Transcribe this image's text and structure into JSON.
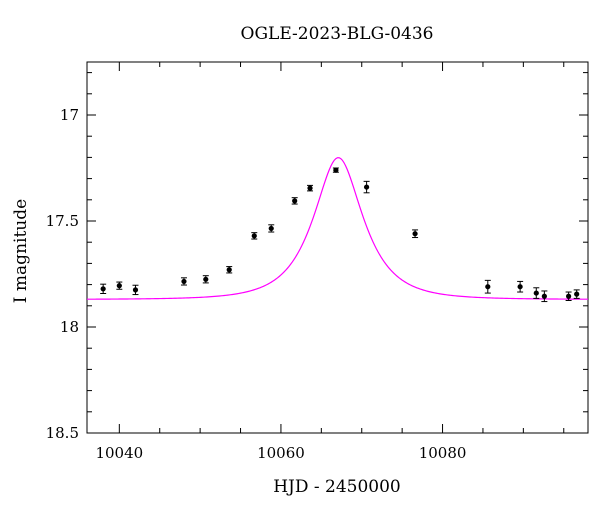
{
  "chart_data": {
    "type": "scatter",
    "title": "OGLE-2023-BLG-0436",
    "xlabel": "HJD - 2450000",
    "ylabel": "I magnitude",
    "xlim": [
      10036,
      10098
    ],
    "ylim": [
      18.5,
      16.75
    ],
    "y_inverted": true,
    "grid": false,
    "x_ticks": [
      10040,
      10060,
      10080
    ],
    "y_ticks": [
      17,
      17.5,
      18,
      18.5
    ],
    "x_tick_labels": [
      "10040",
      "10060",
      "10080"
    ],
    "y_tick_labels": [
      "17",
      "17.5",
      "18",
      "18.5"
    ],
    "colors": {
      "model": "#ff00ff",
      "points": "#000000"
    },
    "series": [
      {
        "kind": "points",
        "x": [
          10038,
          10040,
          10042,
          10048,
          10050.7,
          10053.6,
          10056.7,
          10058.8,
          10061.7,
          10063.6,
          10066.8,
          10070.6,
          10076.6,
          10085.6,
          10089.6,
          10091.6,
          10092.6,
          10095.6,
          10096.6
        ],
        "y": [
          17.82,
          17.805,
          17.825,
          17.785,
          17.775,
          17.73,
          17.57,
          17.535,
          17.405,
          17.345,
          17.26,
          17.34,
          17.56,
          17.81,
          17.81,
          17.84,
          17.855,
          17.855,
          17.845
        ],
        "err": [
          0.022,
          0.017,
          0.022,
          0.017,
          0.017,
          0.015,
          0.015,
          0.017,
          0.015,
          0.013,
          0.01,
          0.027,
          0.018,
          0.03,
          0.025,
          0.025,
          0.025,
          0.02,
          0.02
        ]
      },
      {
        "kind": "model",
        "model": {
          "t0": 10067.1,
          "tE": 5.0,
          "u0": 0.57,
          "baseline_mag": 17.87,
          "flux_fraction": 0.886
        }
      }
    ]
  }
}
